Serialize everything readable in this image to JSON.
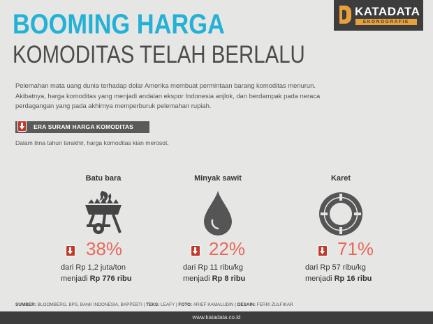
{
  "logo": {
    "brand": "KATADATA",
    "tagline": "EKONOGRAFIK"
  },
  "title": {
    "line1": "BOOMING HARGA",
    "line2": "KOMODITAS TELAH BERLALU"
  },
  "intro": {
    "line1": "Pelemahan mata uang dunia terhadap dolar Amerika membuat permintaan barang komoditas menurun.",
    "line2": "Akibatnya, harga komoditas yang menjadi andalan ekspor Indonesia anjlok, dan berdampak pada neraca",
    "line3": "perdagangan yang pada akhirnya memperburuk pelemahan rupiah."
  },
  "section": {
    "title": "ERA SURAM HARGA KOMODITAS",
    "subtitle": "Dalam lima tahun terakhir, harga komoditas kian merosot."
  },
  "commodities": [
    {
      "name": "Batu bara",
      "icon": "coal-cart-icon",
      "pct": "38%",
      "from": "dari Rp 1,2 juta/ton",
      "to_prefix": "menjadi",
      "to_value": "Rp 776 ribu"
    },
    {
      "name": "Minyak sawit",
      "icon": "oil-drop-icon",
      "pct": "22%",
      "from": "dari Rp 11 ribu/kg",
      "to_prefix": "menjadi",
      "to_value": "Rp 8 ribu"
    },
    {
      "name": "Karet",
      "icon": "rubber-ring-icon",
      "pct": "71%",
      "from": "dari Rp 57 ribu/kg",
      "to_prefix": "menjadi",
      "to_value": "Rp 16 ribu"
    }
  ],
  "credits": {
    "sumber_label": "SUMBER:",
    "sumber": "BLOOMBERG, BPS, BANK INDONESIA, BAPPEBTI",
    "teks_label": "TEKS:",
    "teks": "LEAFY",
    "foto_label": "FOTO:",
    "foto": "ARIEF KAMALUDIN",
    "desain_label": "DESAIN:",
    "desain": "FERRI ZULFIKAR"
  },
  "footer": {
    "url": "www.katadata.co.id"
  },
  "colors": {
    "accent": "#23b2d6",
    "down": "#c1392b",
    "pct": "#e8685a",
    "dark": "#3d3d3d",
    "orange": "#e8a13a"
  }
}
